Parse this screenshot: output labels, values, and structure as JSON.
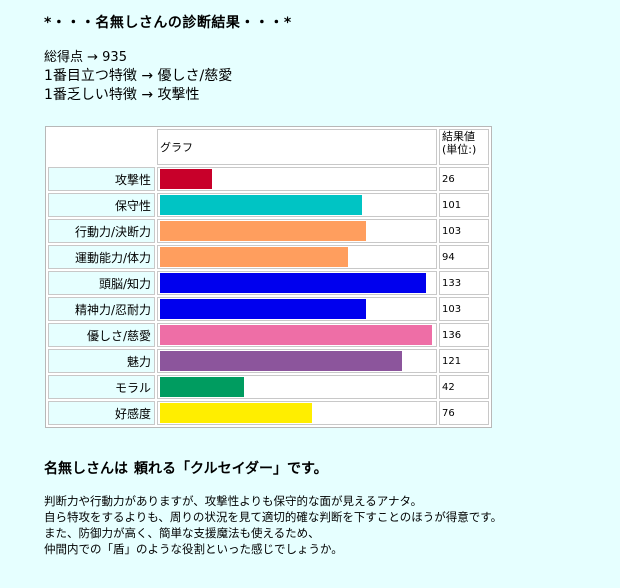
{
  "title": "*・・・名無しさんの診断結果・・・*",
  "summary": {
    "total_label": "総得点 → 935",
    "best_label": "1番目立つ特徴 → 優しさ/慈愛",
    "worst_label": "1番乏しい特徴 → 攻撃性"
  },
  "chart_header": {
    "graph": "グラフ",
    "value_line1": "結果値",
    "value_line2": "(単位:)"
  },
  "chart_data": {
    "type": "bar",
    "orientation": "horizontal",
    "categories": [
      "攻撃性",
      "保守性",
      "行動力/決断力",
      "運動能力/体力",
      "頭脳/知力",
      "精神力/忍耐力",
      "優しさ/慈愛",
      "魅力",
      "モラル",
      "好感度"
    ],
    "values": [
      26,
      101,
      103,
      94,
      133,
      103,
      136,
      121,
      42,
      76
    ],
    "colors": [
      "#c8002a",
      "#00c4c4",
      "#ff9e5e",
      "#ff9e5e",
      "#0000ee",
      "#0000ee",
      "#ee6ea6",
      "#8c559c",
      "#009c60",
      "#ffee00"
    ],
    "xlim": [
      0,
      136
    ],
    "title": "",
    "xlabel": "",
    "ylabel": ""
  },
  "result": {
    "prefix": "名無しさんは",
    "quote": "頼れる「クルセイダー」です。"
  },
  "description": [
    "判断力や行動力がありますが、攻撃性よりも保守的な面が見えるアナタ。",
    "自ら特攻をするよりも、周りの状況を見て適切的確な判断を下すことのほうが得意です。",
    "また、防御力が高く、簡単な支援魔法も使えるため、",
    "仲間内での「盾」のような役割といった感じでしょうか。"
  ]
}
